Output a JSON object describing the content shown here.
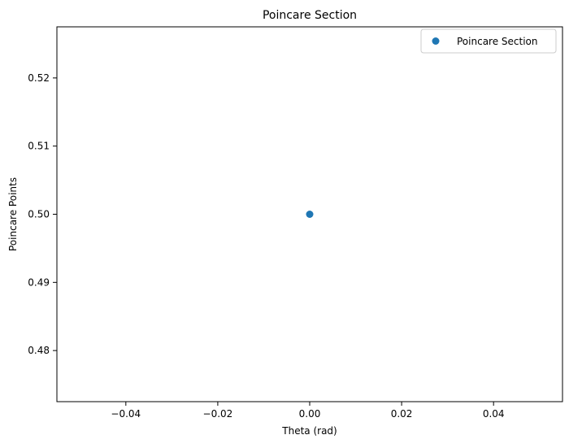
{
  "chart_data": {
    "type": "scatter",
    "title": "Poincare Section",
    "xlabel": "Theta (rad)",
    "ylabel": "Poincare Points",
    "xlim": [
      -0.055,
      0.055
    ],
    "ylim": [
      0.4725,
      0.5275
    ],
    "xticks": [
      -0.04,
      -0.02,
      0.0,
      0.02,
      0.04
    ],
    "xtick_labels": [
      "−0.04",
      "−0.02",
      "0.00",
      "0.02",
      "0.04"
    ],
    "yticks": [
      0.48,
      0.49,
      0.5,
      0.51,
      0.52
    ],
    "ytick_labels": [
      "0.48",
      "0.49",
      "0.50",
      "0.51",
      "0.52"
    ],
    "grid": false,
    "legend_position": "upper right",
    "series": [
      {
        "name": "Poincare Section",
        "marker": "circle",
        "color": "#1f77b4",
        "points": [
          {
            "x": 0.0,
            "y": 0.5
          }
        ]
      }
    ]
  }
}
